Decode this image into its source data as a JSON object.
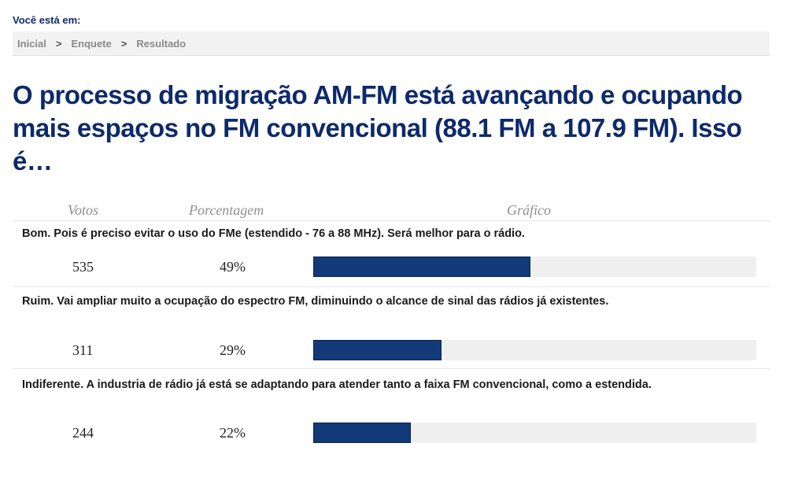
{
  "breadcrumb": {
    "prefix": "Você está em:",
    "items": [
      "Inicial",
      "Enquete",
      "Resultado"
    ],
    "separator": ">"
  },
  "poll": {
    "question": "O processo de migração AM-FM está avançando e ocupando mais espaços no FM convencional (88.1 FM a 107.9 FM). Isso é…",
    "headers": {
      "votes": "Votos",
      "percent": "Porcentagem",
      "chart": "Gráfico"
    },
    "options": [
      {
        "label": "Bom. Pois é preciso evitar o uso do FMe (estendido - 76 a 88 MHz). Será melhor para o rádio.",
        "votes": "535",
        "percent": "49%",
        "fraction": 0.49
      },
      {
        "label": "Ruim. Vai ampliar muito a ocupação do espectro FM, diminuindo o alcance de sinal das rádios já existentes.",
        "votes": "311",
        "percent": "29%",
        "fraction": 0.29
      },
      {
        "label": "Indiferente. A industria de rádio já está se adaptando para atender tanto a faixa FM convencional, como a estendida.",
        "votes": "244",
        "percent": "22%",
        "fraction": 0.22
      }
    ]
  },
  "colors": {
    "accent": "#0d2a6b",
    "bar": "#123a78",
    "track": "#efefef"
  }
}
